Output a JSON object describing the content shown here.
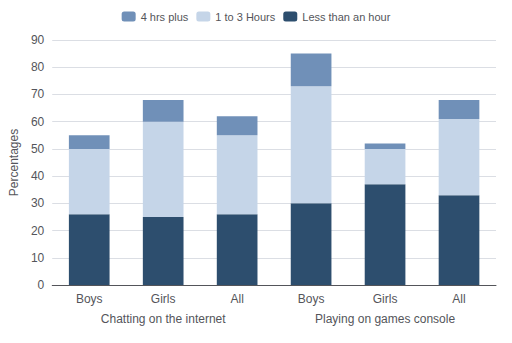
{
  "chart_data": {
    "type": "bar",
    "stacked": true,
    "categories": [
      "Boys",
      "Girls",
      "All",
      "Boys",
      "Girls",
      "All"
    ],
    "annotations": [
      "Chatting on the internet",
      "Playing on games console"
    ],
    "series": [
      {
        "name": "Less than an hour",
        "color": "#2d4e6e",
        "values": [
          26,
          25,
          26,
          30,
          37,
          33
        ]
      },
      {
        "name": "1 to 3 Hours",
        "color": "#c5d5e8",
        "values": [
          24,
          35,
          29,
          43,
          13,
          28
        ]
      },
      {
        "name": "4 hrs plus",
        "color": "#7090b8",
        "values": [
          5,
          8,
          7,
          12,
          2,
          7
        ]
      }
    ],
    "ylabel": "Percentages",
    "ylim": [
      0,
      90
    ],
    "yticks": [
      0,
      10,
      20,
      30,
      40,
      50,
      60,
      70,
      80,
      90
    ],
    "grid": true,
    "legend": "top"
  }
}
